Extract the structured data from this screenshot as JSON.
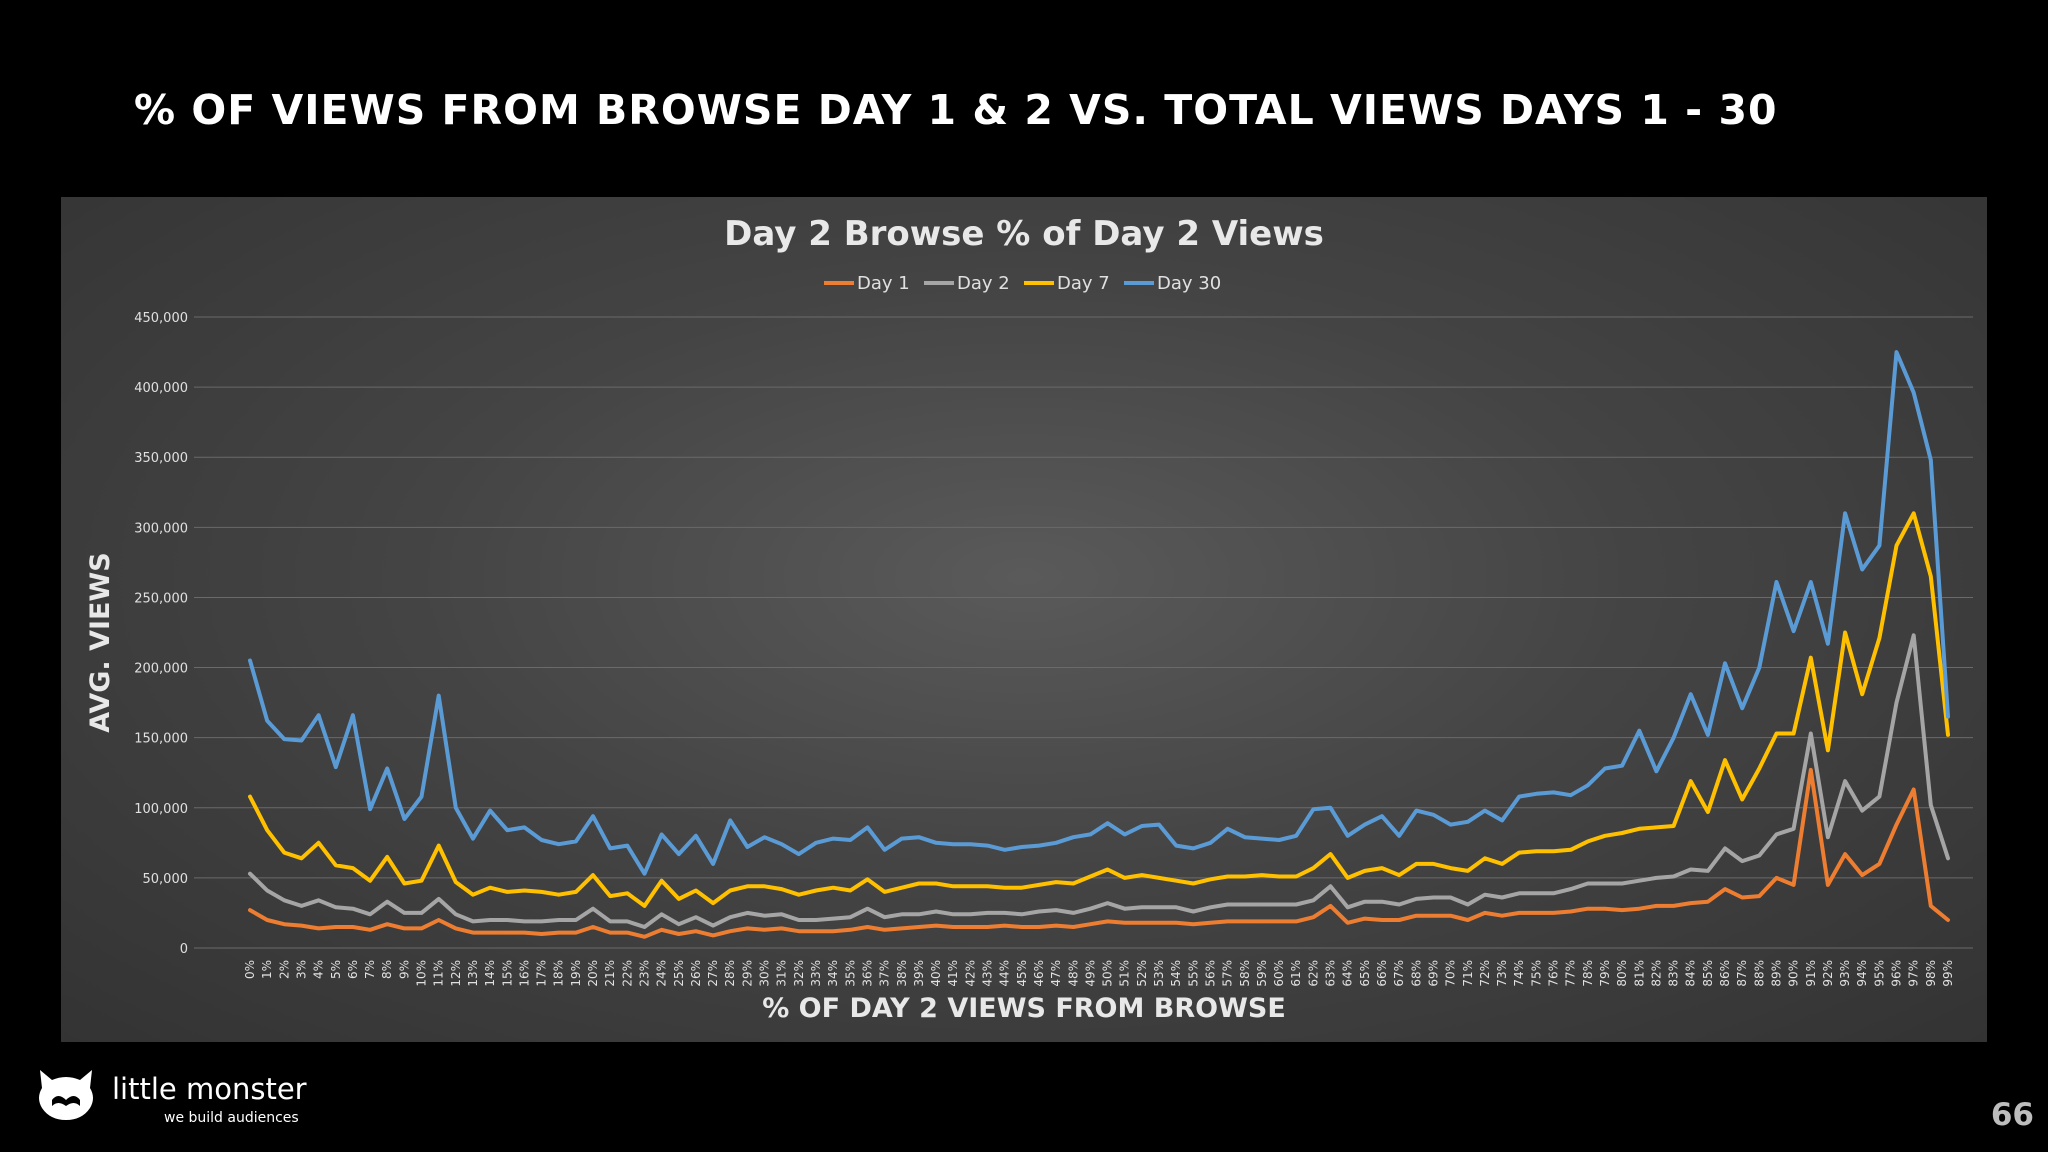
{
  "slide": {
    "title": "% OF VIEWS FROM BROWSE DAY 1 & 2 VS. TOTAL VIEWS DAYS 1 - 30",
    "page_number": "66",
    "logo": {
      "name": "little monster",
      "tagline": "we build audiences"
    }
  },
  "colors": {
    "background": "#000000",
    "day1": "#ED7D31",
    "day2": "#A5A5A5",
    "day7": "#FFC000",
    "day30": "#5B9BD5"
  },
  "chart_data": {
    "type": "line",
    "title": "Day 2 Browse % of Day 2 Views",
    "xlabel": "% OF DAY 2 VIEWS FROM BROWSE",
    "ylabel": "AVG. VIEWS",
    "ylim": [
      0,
      450000
    ],
    "yticks": [
      0,
      50000,
      100000,
      150000,
      200000,
      250000,
      300000,
      350000,
      400000,
      450000
    ],
    "ytick_labels": [
      "0",
      "50,000",
      "100,000",
      "150,000",
      "200,000",
      "250,000",
      "300,000",
      "350,000",
      "400,000",
      "450,000"
    ],
    "grid": true,
    "legend_position": "top-center",
    "categories": [
      "0%",
      "1%",
      "2%",
      "3%",
      "4%",
      "5%",
      "6%",
      "7%",
      "8%",
      "9%",
      "10%",
      "11%",
      "12%",
      "13%",
      "14%",
      "15%",
      "16%",
      "17%",
      "18%",
      "19%",
      "20%",
      "21%",
      "22%",
      "23%",
      "24%",
      "25%",
      "26%",
      "27%",
      "28%",
      "29%",
      "30%",
      "31%",
      "32%",
      "33%",
      "34%",
      "35%",
      "36%",
      "37%",
      "38%",
      "39%",
      "40%",
      "41%",
      "42%",
      "43%",
      "44%",
      "45%",
      "46%",
      "47%",
      "48%",
      "49%",
      "50%",
      "51%",
      "52%",
      "53%",
      "54%",
      "55%",
      "56%",
      "57%",
      "58%",
      "59%",
      "60%",
      "61%",
      "62%",
      "63%",
      "64%",
      "65%",
      "66%",
      "67%",
      "68%",
      "69%",
      "70%",
      "71%",
      "72%",
      "73%",
      "74%",
      "75%",
      "76%",
      "77%",
      "78%",
      "79%",
      "80%",
      "81%",
      "82%",
      "83%",
      "84%",
      "85%",
      "86%",
      "87%",
      "88%",
      "89%",
      "90%",
      "91%",
      "92%",
      "93%",
      "94%",
      "95%",
      "96%",
      "97%",
      "98%",
      "99%"
    ],
    "series": [
      {
        "name": "Day 1",
        "color": "#ED7D31",
        "values": [
          27000,
          20000,
          17000,
          16000,
          14000,
          15000,
          15000,
          13000,
          17000,
          14000,
          14000,
          20000,
          14000,
          11000,
          11000,
          11000,
          11000,
          10000,
          11000,
          11000,
          15000,
          11000,
          11000,
          8000,
          13000,
          10000,
          12000,
          9000,
          12000,
          14000,
          13000,
          14000,
          12000,
          12000,
          12000,
          13000,
          15000,
          13000,
          14000,
          15000,
          16000,
          15000,
          15000,
          15000,
          16000,
          15000,
          15000,
          16000,
          15000,
          17000,
          19000,
          18000,
          18000,
          18000,
          18000,
          17000,
          18000,
          19000,
          19000,
          19000,
          19000,
          19000,
          22000,
          30000,
          18000,
          21000,
          20000,
          20000,
          23000,
          23000,
          23000,
          20000,
          25000,
          23000,
          25000,
          25000,
          25000,
          26000,
          28000,
          28000,
          27000,
          28000,
          30000,
          30000,
          32000,
          33000,
          42000,
          36000,
          37000,
          50000,
          45000,
          127000,
          45000,
          67000,
          52000,
          60000,
          88000,
          113000,
          30000,
          20000
        ]
      },
      {
        "name": "Day 2",
        "color": "#A5A5A5",
        "values": [
          53000,
          41000,
          34000,
          30000,
          34000,
          29000,
          28000,
          24000,
          33000,
          25000,
          25000,
          35000,
          24000,
          19000,
          20000,
          20000,
          19000,
          19000,
          20000,
          20000,
          28000,
          19000,
          19000,
          15000,
          24000,
          17000,
          22000,
          16000,
          22000,
          25000,
          23000,
          24000,
          20000,
          20000,
          21000,
          22000,
          28000,
          22000,
          24000,
          24000,
          26000,
          24000,
          24000,
          25000,
          25000,
          24000,
          26000,
          27000,
          25000,
          28000,
          32000,
          28000,
          29000,
          29000,
          29000,
          26000,
          29000,
          31000,
          31000,
          31000,
          31000,
          31000,
          34000,
          44000,
          29000,
          33000,
          33000,
          31000,
          35000,
          36000,
          36000,
          31000,
          38000,
          36000,
          39000,
          39000,
          39000,
          42000,
          46000,
          46000,
          46000,
          48000,
          50000,
          51000,
          56000,
          55000,
          71000,
          62000,
          66000,
          81000,
          85000,
          153000,
          79000,
          119000,
          98000,
          108000,
          175000,
          223000,
          102000,
          64000
        ]
      },
      {
        "name": "Day 7",
        "color": "#FFC000",
        "values": [
          108000,
          84000,
          68000,
          64000,
          75000,
          59000,
          57000,
          48000,
          65000,
          46000,
          48000,
          73000,
          47000,
          38000,
          43000,
          40000,
          41000,
          40000,
          38000,
          40000,
          52000,
          37000,
          39000,
          30000,
          48000,
          35000,
          41000,
          32000,
          41000,
          44000,
          44000,
          42000,
          38000,
          41000,
          43000,
          41000,
          49000,
          40000,
          43000,
          46000,
          46000,
          44000,
          44000,
          44000,
          43000,
          43000,
          45000,
          47000,
          46000,
          51000,
          56000,
          50000,
          52000,
          50000,
          48000,
          46000,
          49000,
          51000,
          51000,
          52000,
          51000,
          51000,
          57000,
          67000,
          50000,
          55000,
          57000,
          52000,
          60000,
          60000,
          57000,
          55000,
          64000,
          60000,
          68000,
          69000,
          69000,
          70000,
          76000,
          80000,
          82000,
          85000,
          86000,
          87000,
          119000,
          97000,
          134000,
          106000,
          128000,
          153000,
          153000,
          207000,
          141000,
          225000,
          181000,
          221000,
          287000,
          310000,
          265000,
          152000
        ]
      },
      {
        "name": "Day 30",
        "color": "#5B9BD5",
        "values": [
          205000,
          162000,
          149000,
          148000,
          166000,
          129000,
          166000,
          99000,
          128000,
          92000,
          108000,
          180000,
          100000,
          78000,
          98000,
          84000,
          86000,
          77000,
          74000,
          76000,
          94000,
          71000,
          73000,
          53000,
          81000,
          67000,
          80000,
          60000,
          91000,
          72000,
          79000,
          74000,
          67000,
          75000,
          78000,
          77000,
          86000,
          70000,
          78000,
          79000,
          75000,
          74000,
          74000,
          73000,
          70000,
          72000,
          73000,
          75000,
          79000,
          81000,
          89000,
          81000,
          87000,
          88000,
          73000,
          71000,
          75000,
          85000,
          79000,
          78000,
          77000,
          80000,
          99000,
          100000,
          80000,
          88000,
          94000,
          80000,
          98000,
          95000,
          88000,
          90000,
          98000,
          91000,
          108000,
          110000,
          111000,
          109000,
          116000,
          128000,
          130000,
          155000,
          126000,
          150000,
          181000,
          152000,
          203000,
          171000,
          200000,
          261000,
          226000,
          261000,
          217000,
          310000,
          270000,
          287000,
          425000,
          396000,
          348000,
          165000
        ]
      }
    ]
  }
}
